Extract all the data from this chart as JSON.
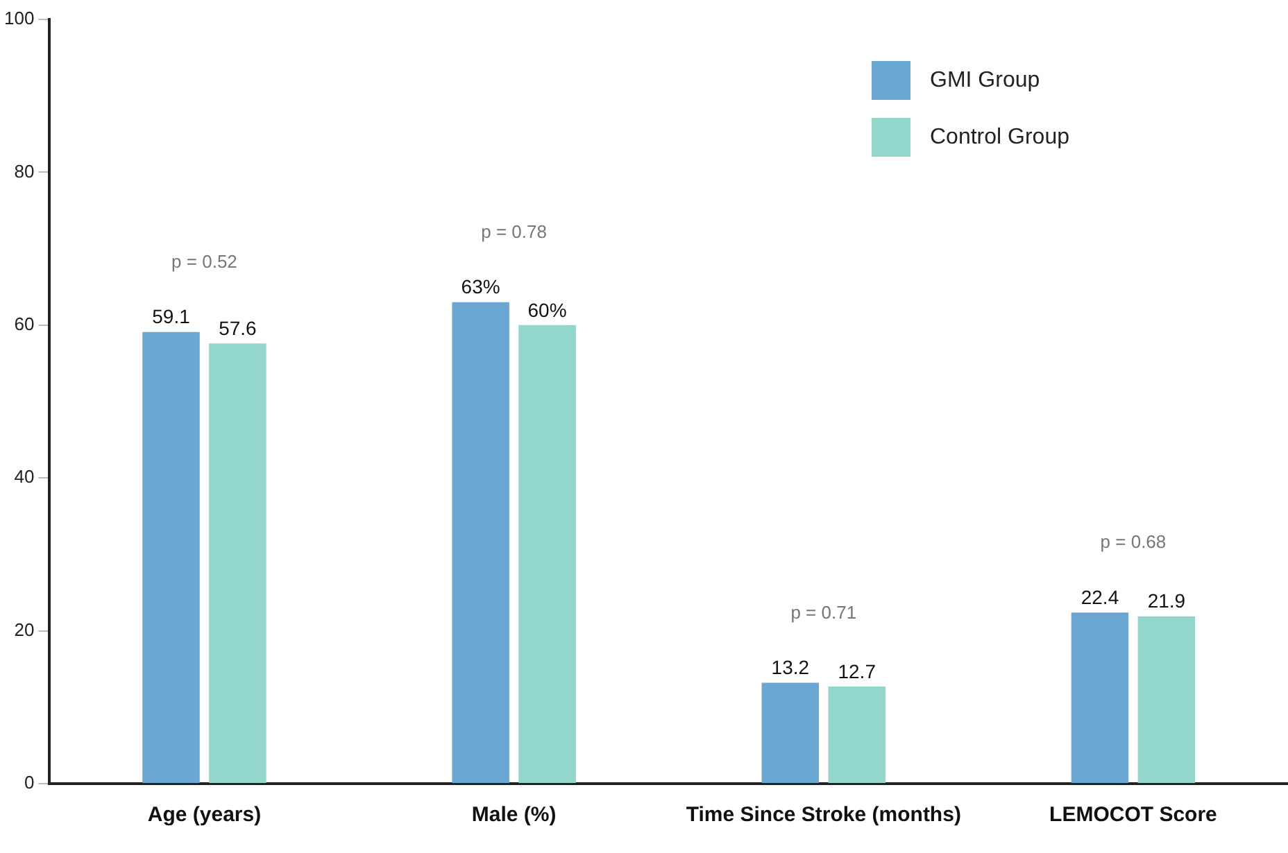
{
  "chart_data": {
    "type": "bar",
    "categories": [
      "Age (years)",
      "Male (%)",
      "Time Since Stroke (months)",
      "LEMOCOT Score"
    ],
    "series": [
      {
        "name": "GMI Group",
        "color": "#6aa7d3",
        "values": [
          59.1,
          63,
          13.2,
          22.4
        ],
        "value_labels": [
          "59.1",
          "63%",
          "13.2",
          "22.4"
        ]
      },
      {
        "name": "Control Group",
        "color": "#92d6cc",
        "values": [
          57.6,
          60,
          12.7,
          21.9
        ],
        "value_labels": [
          "57.6",
          "60%",
          "12.7",
          "21.9"
        ]
      }
    ],
    "ylim": [
      0,
      100
    ],
    "yticks": [
      0,
      20,
      40,
      60,
      80,
      100
    ],
    "grid": false,
    "legend": "top right",
    "annotations": [
      "p = 0.52",
      "p = 0.78",
      "p = 0.71",
      "p = 0.68"
    ]
  }
}
